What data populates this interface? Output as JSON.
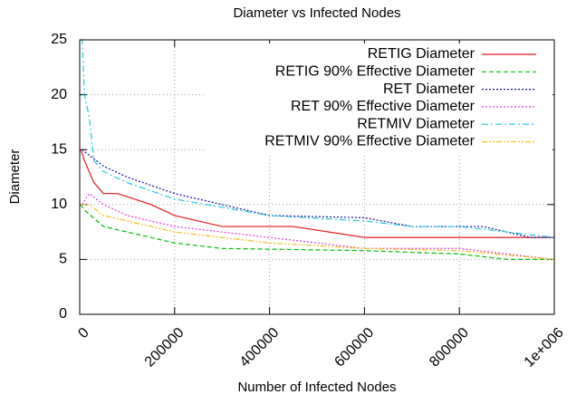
{
  "chart_data": {
    "type": "line",
    "title": "Diameter vs Infected Nodes",
    "x_label": "Number of Infected Nodes",
    "y_label": "Diameter",
    "xlim": [
      0,
      1000000
    ],
    "ylim": [
      0,
      25
    ],
    "xticks": [
      0,
      200000,
      400000,
      600000,
      800000,
      {
        "value": 1000000,
        "label": "1e+006"
      }
    ],
    "yticks": [
      0,
      5,
      10,
      15,
      20,
      25
    ],
    "grid": true,
    "legend": "top-right",
    "series": [
      {
        "name": "RETIG Diameter",
        "color": "#e41a1c",
        "dash": "solid",
        "x": [
          2000,
          10000,
          30000,
          50000,
          80000,
          150000,
          200000,
          300000,
          450000,
          600000,
          800000,
          1000000
        ],
        "values": [
          15,
          14,
          12,
          11,
          11,
          10,
          9,
          8,
          8,
          7,
          7,
          7
        ]
      },
      {
        "name": "RETIG 90% Effective Diameter",
        "color": "#00c000",
        "dash": "dashed",
        "x": [
          2000,
          10000,
          50000,
          150000,
          200000,
          300000,
          600000,
          800000,
          900000,
          1000000
        ],
        "values": [
          10,
          9.5,
          8,
          7,
          6.5,
          6,
          5.8,
          5.5,
          5,
          5
        ]
      },
      {
        "name": "RET Diameter",
        "color": "#1010a0",
        "dash": "dotted",
        "x": [
          5000,
          20000,
          50000,
          100000,
          200000,
          400000,
          600000,
          700000,
          850000,
          950000,
          1000000
        ],
        "values": [
          15,
          14.5,
          13.5,
          12.5,
          11,
          9,
          8.8,
          8,
          8,
          7,
          7
        ]
      },
      {
        "name": "RET 90% Effective Diameter",
        "color": "#e040e0",
        "dash": "dotted",
        "x": [
          5000,
          20000,
          50000,
          100000,
          200000,
          400000,
          600000,
          800000,
          1000000
        ],
        "values": [
          10,
          11,
          10,
          9,
          8,
          7,
          6,
          6,
          5
        ]
      },
      {
        "name": "RETMIV Diameter",
        "color": "#20c8e0",
        "dash": "dashdot",
        "x": [
          2000,
          5000,
          10000,
          20000,
          30000,
          50000,
          100000,
          200000,
          400000,
          600000,
          700000,
          800000,
          900000,
          1000000
        ],
        "values": [
          25,
          25,
          20,
          18,
          14,
          13,
          12,
          10.5,
          9,
          8.5,
          8,
          8,
          7.5,
          7
        ]
      },
      {
        "name": "RETMIV 90% Effective Diameter",
        "color": "#f0c020",
        "dash": "dashdotdot",
        "x": [
          2000,
          20000,
          50000,
          100000,
          200000,
          400000,
          600000,
          800000,
          1000000
        ],
        "values": [
          10,
          10,
          9,
          8.5,
          7.5,
          6.5,
          6,
          5.8,
          5
        ]
      }
    ]
  }
}
